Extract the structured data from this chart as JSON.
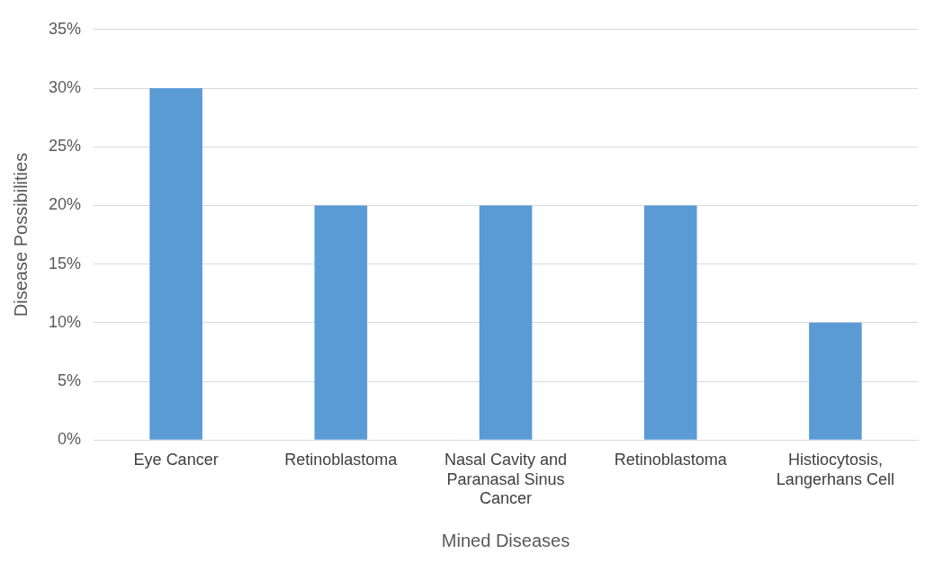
{
  "chart_data": {
    "type": "bar",
    "xlabel": "Mined Diseases",
    "ylabel": "Disease Possibilities",
    "categories": [
      "Eye Cancer",
      "Retinoblastoma",
      "Nasal Cavity and Paranasal Sinus Cancer",
      "Retinoblastoma",
      "Histiocytosis, Langerhans Cell"
    ],
    "values": [
      30,
      20,
      20,
      20,
      10
    ],
    "color": "#5b9bd5",
    "ylim": [
      0,
      35
    ],
    "yticks": [
      {
        "value": 0,
        "label": "0%"
      },
      {
        "value": 5,
        "label": "5%"
      },
      {
        "value": 10,
        "label": "10%"
      },
      {
        "value": 15,
        "label": "15%"
      },
      {
        "value": 20,
        "label": "20%"
      },
      {
        "value": 25,
        "label": "25%"
      },
      {
        "value": 30,
        "label": "30%"
      },
      {
        "value": 35,
        "label": "35%"
      }
    ],
    "grid": "y",
    "legend": false
  }
}
